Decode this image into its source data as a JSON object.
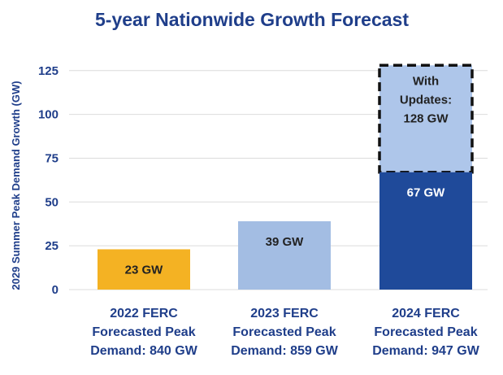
{
  "chart_data": {
    "type": "bar",
    "title": "5-year Nationwide Growth Forecast",
    "ylabel": "2029 Summer Peak Demand Growth (GW)",
    "xlabel": "",
    "ylim": [
      0,
      130
    ],
    "yticks": [
      0,
      25,
      50,
      75,
      100,
      125
    ],
    "grid": true,
    "categories": [
      [
        "2022 FERC",
        "Forecasted Peak",
        "Demand: 840 GW"
      ],
      [
        "2023 FERC",
        "Forecasted Peak",
        "Demand: 859 GW"
      ],
      [
        "2024 FERC",
        "Forecasted Peak",
        "Demand: 947 GW"
      ]
    ],
    "values": [
      23,
      39,
      67
    ],
    "data_labels": [
      "23 GW",
      "39 GW",
      "67 GW"
    ],
    "colors": [
      "#f4b223",
      "#a3bde3",
      "#1f4a9a"
    ],
    "label_colors": [
      "#222222",
      "#222222",
      "#ffffff"
    ],
    "update_bar": {
      "category_index": 2,
      "total": 128,
      "label_lines": [
        "With",
        "Updates:",
        "128 GW"
      ],
      "fill": "#aec6ea",
      "border": "#111111"
    }
  }
}
